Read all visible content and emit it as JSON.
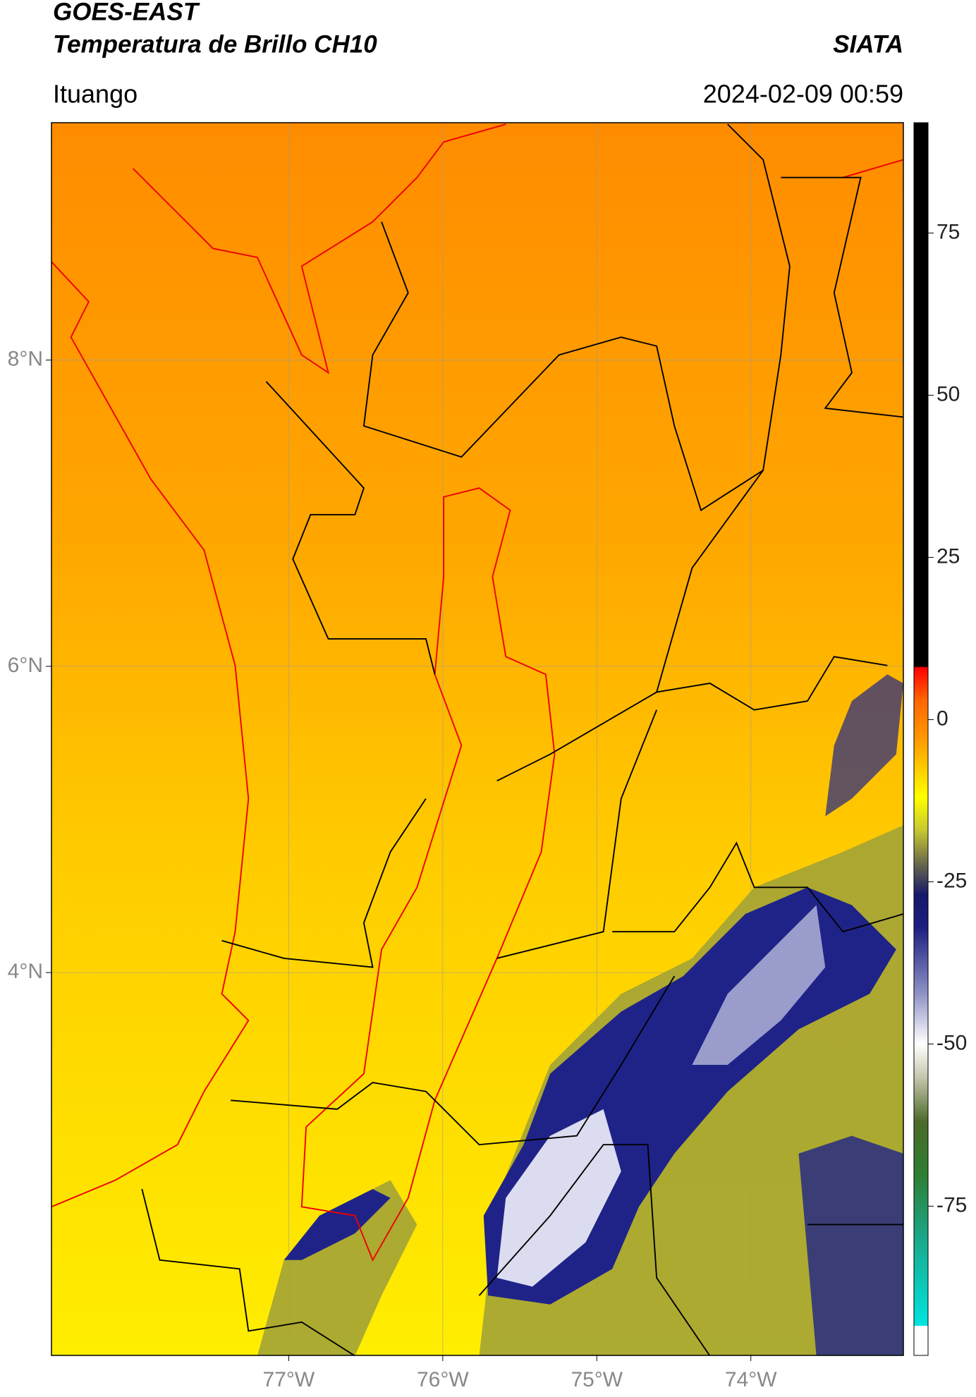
{
  "header": {
    "title": "GOES-EAST",
    "subtitle": "Temperatura de Brillo CH10",
    "source": "SIATA",
    "location": "Ituango",
    "timestamp": "2024-02-09 00:59"
  },
  "map": {
    "lon_lim": [
      -78.54,
      -73.01
    ],
    "lat_lim": [
      1.5,
      9.55
    ],
    "grid": true,
    "lat_ticks": [
      {
        "value": 8,
        "label": "8°N"
      },
      {
        "value": 6,
        "label": "6°N"
      },
      {
        "value": 4,
        "label": "4°N"
      }
    ],
    "lon_ticks": [
      {
        "value": -77,
        "label": "77°W"
      },
      {
        "value": -76,
        "label": "76°W"
      },
      {
        "value": -75,
        "label": "75°W"
      },
      {
        "value": -74,
        "label": "74°W"
      }
    ]
  },
  "colorbar": {
    "lim": [
      -98,
      92
    ],
    "ticks": [
      75,
      50,
      25,
      0,
      -25,
      -50,
      -75
    ],
    "colormap": [
      {
        "value": -98,
        "color": "#ffffff"
      },
      {
        "value": -93.5,
        "color": "#ffffff"
      },
      {
        "value": -93.4,
        "color": "#00e5e0"
      },
      {
        "value": -80,
        "color": "#1aa88a"
      },
      {
        "value": -70,
        "color": "#2e7d32"
      },
      {
        "value": -62,
        "color": "#4b6b2a"
      },
      {
        "value": -55,
        "color": "#c8c8b0"
      },
      {
        "value": -50,
        "color": "#ffffff"
      },
      {
        "value": -42,
        "color": "#8c8fc4"
      },
      {
        "value": -32,
        "color": "#1c1f80"
      },
      {
        "value": -27,
        "color": "#16186a"
      },
      {
        "value": -22,
        "color": "#6d6d4a"
      },
      {
        "value": -17,
        "color": "#c8c830"
      },
      {
        "value": -12,
        "color": "#ffff00"
      },
      {
        "value": -3,
        "color": "#ff9900"
      },
      {
        "value": 3,
        "color": "#ff6600"
      },
      {
        "value": 8,
        "color": "#ff0000"
      },
      {
        "value": 8.2,
        "color": "#000000"
      },
      {
        "value": 92,
        "color": "#000000"
      }
    ]
  }
}
